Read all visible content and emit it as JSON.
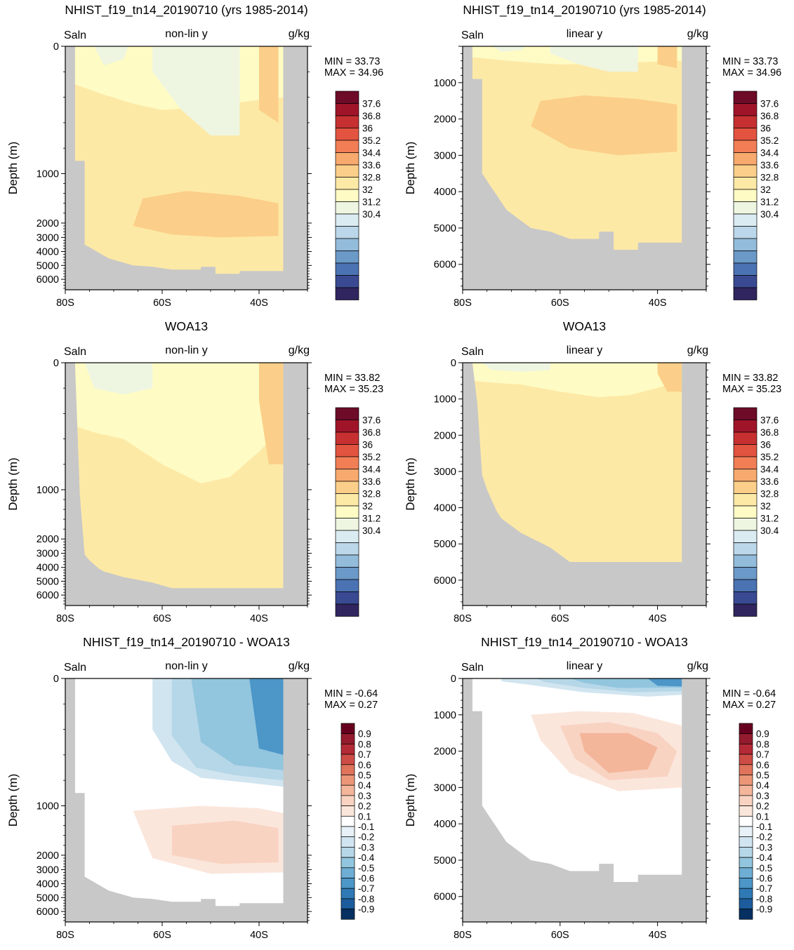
{
  "chart_data": [
    {
      "type": "heatmap",
      "title": "NHIST_f19_tn14_20190710 (yrs 1985-2014)",
      "variable": "Saln",
      "y_scale_label": "non-lin y",
      "units": "g/kg",
      "ylabel": "Depth (m)",
      "ylim": [
        0,
        6700
      ],
      "yticks": [
        "0",
        "1000",
        "2000",
        "3000",
        "4000",
        "5000",
        "6000"
      ],
      "xticks": [
        "80S",
        "60S",
        "40S"
      ],
      "min_label": "MIN =  33.73",
      "max_label": "MAX =  34.96",
      "colorbar_labels": [
        "37.6",
        "36.8",
        "36",
        "35.2",
        "34.4",
        "33.6",
        "32.8",
        "32",
        "31.2",
        "30.4"
      ]
    },
    {
      "type": "heatmap",
      "title": "NHIST_f19_tn14_20190710 (yrs 1985-2014)",
      "variable": "Saln",
      "y_scale_label": "linear y",
      "units": "g/kg",
      "ylabel": "Depth (m)",
      "ylim": [
        0,
        6700
      ],
      "yticks": [
        "1000",
        "2000",
        "3000",
        "4000",
        "5000",
        "6000"
      ],
      "xticks": [
        "80S",
        "60S",
        "40S"
      ],
      "min_label": "MIN =  33.73",
      "max_label": "MAX =  34.96",
      "colorbar_labels": [
        "37.6",
        "36.8",
        "36",
        "35.2",
        "34.4",
        "33.6",
        "32.8",
        "32",
        "31.2",
        "30.4"
      ]
    },
    {
      "type": "heatmap",
      "title": "WOA13",
      "variable": "Saln",
      "y_scale_label": "non-lin y",
      "units": "g/kg",
      "ylabel": "Depth (m)",
      "ylim": [
        0,
        6700
      ],
      "yticks": [
        "0",
        "1000",
        "2000",
        "3000",
        "4000",
        "5000",
        "6000"
      ],
      "xticks": [
        "80S",
        "60S",
        "40S"
      ],
      "min_label": "MIN =  33.82",
      "max_label": "MAX =  35.23",
      "colorbar_labels": [
        "37.6",
        "36.8",
        "36",
        "35.2",
        "34.4",
        "33.6",
        "32.8",
        "32",
        "31.2",
        "30.4"
      ]
    },
    {
      "type": "heatmap",
      "title": "WOA13",
      "variable": "Saln",
      "y_scale_label": "linear y",
      "units": "g/kg",
      "ylabel": "Depth (m)",
      "ylim": [
        0,
        6700
      ],
      "yticks": [
        "0",
        "1000",
        "2000",
        "3000",
        "4000",
        "5000",
        "6000"
      ],
      "xticks": [
        "80S",
        "60S",
        "40S"
      ],
      "min_label": "MIN =  33.82",
      "max_label": "MAX =  35.23",
      "colorbar_labels": [
        "37.6",
        "36.8",
        "36",
        "35.2",
        "34.4",
        "33.6",
        "32.8",
        "32",
        "31.2",
        "30.4"
      ]
    },
    {
      "type": "heatmap",
      "title": "NHIST_f19_tn14_20190710 - WOA13",
      "variable": "Saln",
      "y_scale_label": "non-lin y",
      "units": "g/kg",
      "ylabel": "Depth (m)",
      "ylim": [
        0,
        6700
      ],
      "yticks": [
        "0",
        "1000",
        "2000",
        "3000",
        "4000",
        "5000",
        "6000"
      ],
      "xticks": [
        "80S",
        "60S",
        "40S"
      ],
      "min_label": "MIN =  -0.64",
      "max_label": "MAX =   0.27",
      "colorbar_labels": [
        "0.9",
        "0.8",
        "0.7",
        "0.6",
        "0.5",
        "0.4",
        "0.3",
        "0.2",
        "0.1",
        "-0.1",
        "-0.2",
        "-0.3",
        "-0.4",
        "-0.5",
        "-0.6",
        "-0.7",
        "-0.8",
        "-0.9"
      ]
    },
    {
      "type": "heatmap",
      "title": "NHIST_f19_tn14_20190710 - WOA13",
      "variable": "Saln",
      "y_scale_label": "linear y",
      "units": "g/kg",
      "ylabel": "Depth (m)",
      "ylim": [
        0,
        6700
      ],
      "yticks": [
        "0",
        "1000",
        "2000",
        "3000",
        "4000",
        "5000",
        "6000"
      ],
      "xticks": [
        "80S",
        "60S",
        "40S"
      ],
      "min_label": "MIN =  -0.64",
      "max_label": "MAX =   0.27",
      "colorbar_labels": [
        "0.9",
        "0.8",
        "0.7",
        "0.6",
        "0.5",
        "0.4",
        "0.3",
        "0.2",
        "0.1",
        "-0.1",
        "-0.2",
        "-0.3",
        "-0.4",
        "-0.5",
        "-0.6",
        "-0.7",
        "-0.8",
        "-0.9"
      ]
    }
  ],
  "colors": {
    "land": "#c8c8c8",
    "salinity_scale": [
      "#30255e",
      "#3a4a92",
      "#4b72b2",
      "#6b99c8",
      "#93bcdb",
      "#bbd7e9",
      "#dbebf2",
      "#eef6e2",
      "#fefbc4",
      "#fde9a6",
      "#fbcf89",
      "#f8a96d",
      "#f27e55",
      "#e25340",
      "#c63031",
      "#a0142a",
      "#6d0b28"
    ],
    "anomaly_scale": [
      "#053061",
      "#1c5c9c",
      "#2f79b5",
      "#4c96c8",
      "#6eaed5",
      "#92c5de",
      "#b5d7e8",
      "#d1e5f0",
      "#e7f1f7",
      "#ffffff",
      "#fbe6dc",
      "#f9d3c2",
      "#f4b69b",
      "#ec9678",
      "#e0735c",
      "#cd4d46",
      "#b42a36",
      "#931b2d",
      "#67001f"
    ]
  }
}
